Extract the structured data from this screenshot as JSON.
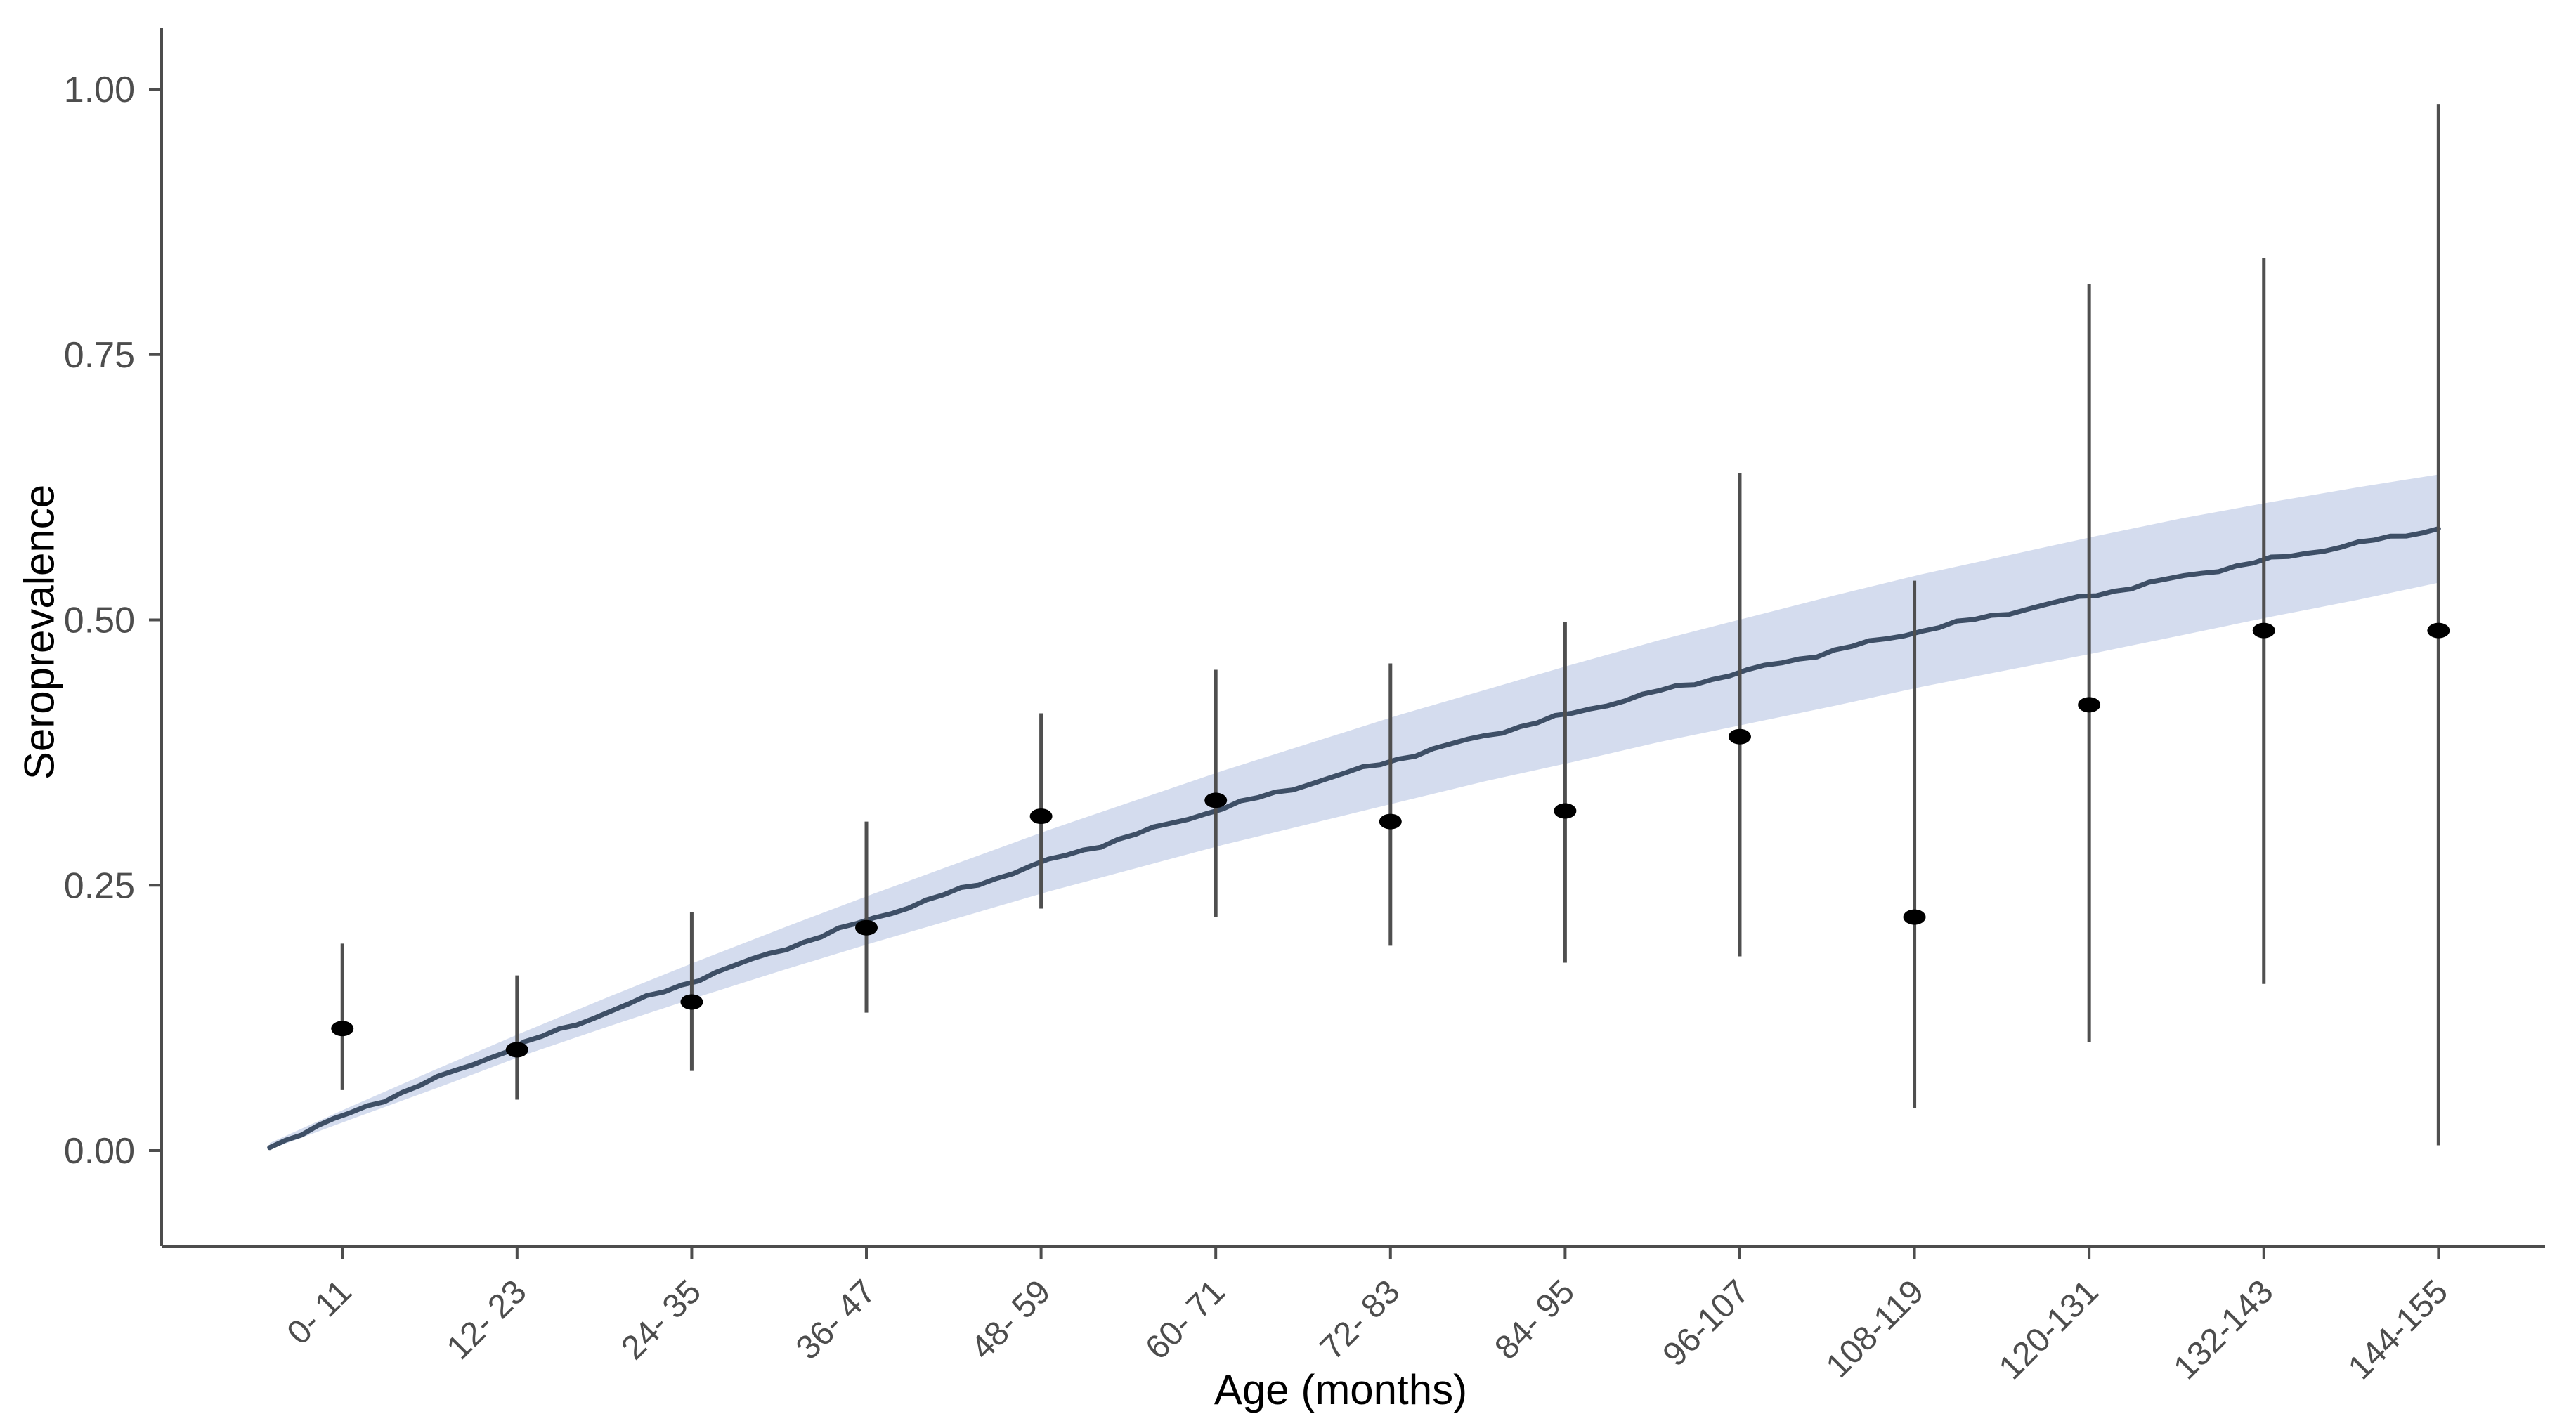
{
  "figure": {
    "x_axis_title": "Age (months)",
    "y_axis_title": "Seroprevalence",
    "colors": {
      "background": "#ffffff",
      "fit_line": "#3e4f66",
      "ribbon": "#d4dcee",
      "point": "#000000",
      "error_bar": "#4f4f4f",
      "axis_line": "#4d4d4d",
      "tick_label": "#4d4d4d",
      "axis_title": "#000000"
    }
  },
  "chart_data": {
    "type": "line",
    "title": "",
    "xlabel": "Age (months)",
    "ylabel": "Seroprevalence",
    "ylim": [
      0,
      1
    ],
    "grid": false,
    "legend_position": "none",
    "y_ticks_labels": [
      "0.00",
      "0.25",
      "0.50",
      "0.75",
      "1.00"
    ],
    "y_ticks_values": [
      0,
      0.25,
      0.5,
      0.75,
      1
    ],
    "categories": [
      "0- 11",
      "12- 23",
      "24- 35",
      "36- 47",
      "48- 59",
      "60- 71",
      "72- 83",
      "84- 95",
      "96-107",
      "108-119",
      "120-131",
      "132-143",
      "144-155"
    ],
    "category_months": [
      5.5,
      17.5,
      29.5,
      41.5,
      53.5,
      65.5,
      77.5,
      89.5,
      101.5,
      113.5,
      125.5,
      137.5,
      149.5
    ],
    "observed": [
      {
        "age_group": "0- 11",
        "estimate": 0.115,
        "lower": 0.057,
        "upper": 0.195
      },
      {
        "age_group": "12- 23",
        "estimate": 0.095,
        "lower": 0.048,
        "upper": 0.165
      },
      {
        "age_group": "24- 35",
        "estimate": 0.14,
        "lower": 0.075,
        "upper": 0.225
      },
      {
        "age_group": "36- 47",
        "estimate": 0.21,
        "lower": 0.13,
        "upper": 0.31
      },
      {
        "age_group": "48- 59",
        "estimate": 0.315,
        "lower": 0.228,
        "upper": 0.412
      },
      {
        "age_group": "60- 71",
        "estimate": 0.33,
        "lower": 0.22,
        "upper": 0.453
      },
      {
        "age_group": "72- 83",
        "estimate": 0.31,
        "lower": 0.193,
        "upper": 0.459
      },
      {
        "age_group": "84- 95",
        "estimate": 0.32,
        "lower": 0.177,
        "upper": 0.498
      },
      {
        "age_group": "96-107",
        "estimate": 0.39,
        "lower": 0.183,
        "upper": 0.638
      },
      {
        "age_group": "108-119",
        "estimate": 0.22,
        "lower": 0.04,
        "upper": 0.537
      },
      {
        "age_group": "120-131",
        "estimate": 0.42,
        "lower": 0.102,
        "upper": 0.816
      },
      {
        "age_group": "132-143",
        "estimate": 0.49,
        "lower": 0.157,
        "upper": 0.841
      },
      {
        "age_group": "144-155",
        "estimate": 0.49,
        "lower": 0.005,
        "upper": 0.986
      }
    ],
    "fitted_curve": {
      "x_months": [
        0.5,
        6,
        12,
        18,
        24,
        30,
        36,
        42,
        48,
        54,
        60,
        66,
        72,
        78,
        84,
        90,
        96,
        102,
        108,
        114,
        120,
        126,
        132,
        138,
        144,
        149.5
      ],
      "fit": [
        0.004,
        0.035,
        0.068,
        0.101,
        0.132,
        0.162,
        0.191,
        0.219,
        0.246,
        0.273,
        0.298,
        0.323,
        0.346,
        0.369,
        0.391,
        0.412,
        0.433,
        0.452,
        0.471,
        0.49,
        0.507,
        0.524,
        0.541,
        0.557,
        0.572,
        0.586
      ],
      "lower": [
        0.001,
        0.029,
        0.059,
        0.09,
        0.118,
        0.145,
        0.171,
        0.196,
        0.22,
        0.244,
        0.266,
        0.288,
        0.308,
        0.328,
        0.348,
        0.366,
        0.385,
        0.402,
        0.419,
        0.437,
        0.453,
        0.469,
        0.486,
        0.503,
        0.519,
        0.535
      ],
      "upper": [
        0.007,
        0.041,
        0.077,
        0.112,
        0.146,
        0.179,
        0.211,
        0.242,
        0.272,
        0.302,
        0.33,
        0.358,
        0.384,
        0.41,
        0.434,
        0.458,
        0.481,
        0.502,
        0.523,
        0.543,
        0.561,
        0.579,
        0.596,
        0.611,
        0.625,
        0.637
      ]
    }
  }
}
